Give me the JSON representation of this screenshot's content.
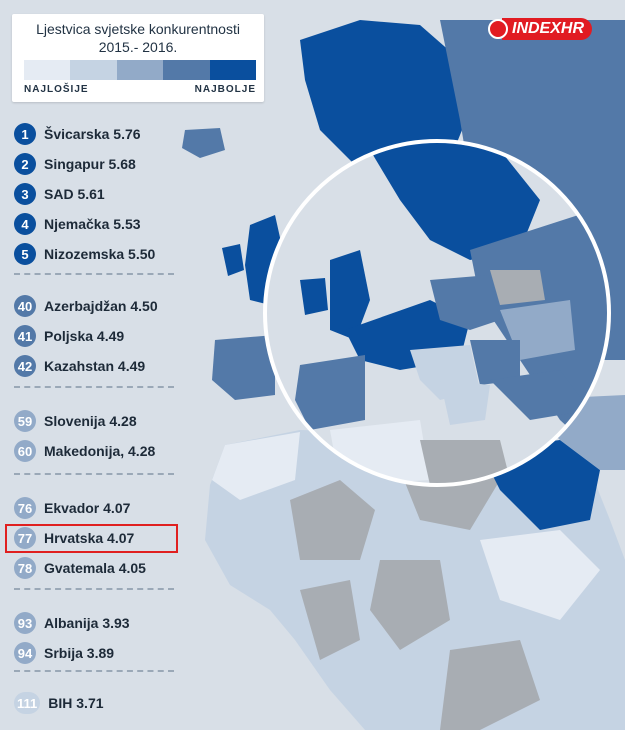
{
  "legend": {
    "title": "Ljestvica svjetske konkurentnosti",
    "subtitle": "2015.- 2016.",
    "low_label": "NAJLOŠIJE",
    "high_label": "NAJBOLJE",
    "scale_colors": [
      "#e5ebf3",
      "#c5d3e3",
      "#92aac8",
      "#5379a8",
      "#0a4f9e"
    ]
  },
  "logo": {
    "text": "INDEXHR"
  },
  "colors": {
    "ocean": "#d8dfe7",
    "land_nodata": "#a8adb3",
    "highlight": "#e02020"
  },
  "rankings": [
    {
      "rank": "1",
      "label": "Švicarska 5.76",
      "group": 1
    },
    {
      "rank": "2",
      "label": "Singapur 5.68",
      "group": 1
    },
    {
      "rank": "3",
      "label": "SAD 5.61",
      "group": 1
    },
    {
      "rank": "4",
      "label": "Njemačka 5.53",
      "group": 1
    },
    {
      "rank": "5",
      "label": "Nizozemska 5.50",
      "group": 1
    },
    {
      "rank": "40",
      "label": "Azerbajdžan 4.50",
      "group": 2
    },
    {
      "rank": "41",
      "label": "Poljska 4.49",
      "group": 2
    },
    {
      "rank": "42",
      "label": "Kazahstan 4.49",
      "group": 2
    },
    {
      "rank": "59",
      "label": "Slovenija 4.28",
      "group": 3
    },
    {
      "rank": "60",
      "label": "Makedonija, 4.28",
      "group": 3
    },
    {
      "rank": "76",
      "label": "Ekvador 4.07",
      "group": 4
    },
    {
      "rank": "77",
      "label": "Hrvatska 4.07",
      "group": 4
    },
    {
      "rank": "78",
      "label": "Gvatemala 4.05",
      "group": 4
    },
    {
      "rank": "93",
      "label": "Albanija 3.93",
      "group": 5
    },
    {
      "rank": "94",
      "label": "Srbija 3.89",
      "group": 5
    },
    {
      "rank": "111",
      "label": "BIH 3.71",
      "group": 6
    }
  ]
}
